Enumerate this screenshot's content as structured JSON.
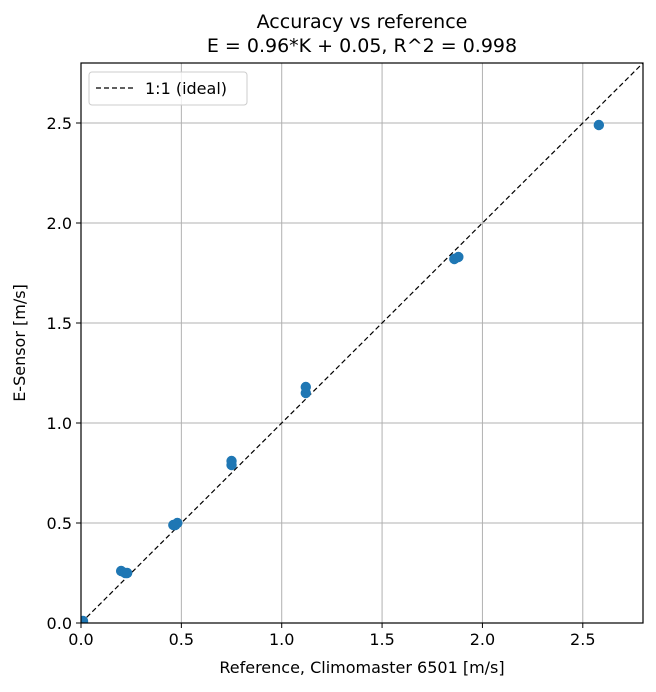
{
  "chart_data": {
    "type": "scatter",
    "title": "Accuracy vs reference",
    "subtitle": "E = 0.96*K + 0.05,  R^2 = 0.998",
    "xlabel": "Reference, Climomaster 6501 [m/s]",
    "ylabel": "E-Sensor [m/s]",
    "xlim": [
      0,
      2.8
    ],
    "ylim": [
      0,
      2.8
    ],
    "xticks": [
      "0.0",
      "0.5",
      "1.0",
      "1.5",
      "2.0",
      "2.5"
    ],
    "yticks": [
      "0.0",
      "0.5",
      "1.0",
      "1.5",
      "2.0",
      "2.5"
    ],
    "grid": true,
    "legend": {
      "position": "top-left",
      "entries": [
        "1:1 (ideal)"
      ]
    },
    "series": [
      {
        "marker_color": "#1f77b4",
        "points": [
          {
            "x": 0.0,
            "y": 0.0
          },
          {
            "x": 0.01,
            "y": 0.01
          },
          {
            "x": 0.2,
            "y": 0.26
          },
          {
            "x": 0.22,
            "y": 0.25
          },
          {
            "x": 0.23,
            "y": 0.25
          },
          {
            "x": 0.46,
            "y": 0.49
          },
          {
            "x": 0.47,
            "y": 0.49
          },
          {
            "x": 0.48,
            "y": 0.5
          },
          {
            "x": 0.75,
            "y": 0.79
          },
          {
            "x": 0.75,
            "y": 0.81
          },
          {
            "x": 1.12,
            "y": 1.15
          },
          {
            "x": 1.12,
            "y": 1.18
          },
          {
            "x": 1.86,
            "y": 1.82
          },
          {
            "x": 1.88,
            "y": 1.83
          },
          {
            "x": 2.58,
            "y": 2.49
          }
        ]
      },
      {
        "name": "1:1 (ideal)",
        "line_style": "dashed",
        "line_color": "#000000",
        "points": [
          {
            "x": 0.0,
            "y": 0.0
          },
          {
            "x": 2.8,
            "y": 2.8
          }
        ]
      }
    ]
  }
}
